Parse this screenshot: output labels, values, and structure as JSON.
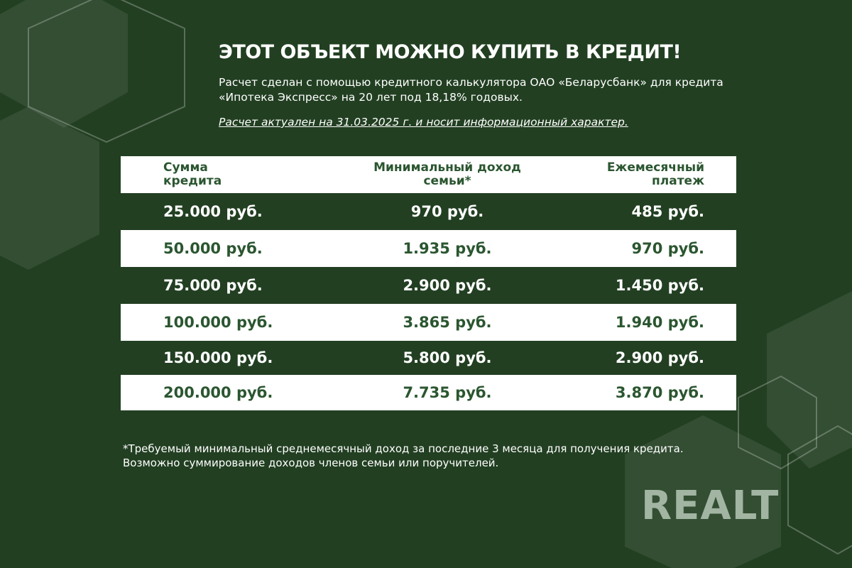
{
  "header": {
    "title": "ЭТОТ ОБЪЕКТ МОЖНО КУПИТЬ В КРЕДИТ!",
    "subtitle": "Расчет сделан с помощью кредитного калькулятора ОАО «Беларусбанк» для кредита «Ипотека Экспресс» на 20 лет под 18,18% годовых.",
    "note": "Расчет актуален на 31.03.2025 г. и носит информационный характер."
  },
  "table": {
    "columns": [
      "Сумма кредита",
      "Минимальный доход семьи*",
      "Ежемесячный платеж"
    ],
    "rows": [
      [
        "25.000 руб.",
        "970 руб.",
        "485 руб."
      ],
      [
        "50.000 руб.",
        "1.935 руб.",
        "970 руб."
      ],
      [
        "75.000 руб.",
        "2.900 руб.",
        "1.450 руб."
      ],
      [
        "100.000 руб.",
        "3.865 руб.",
        "1.940 руб."
      ],
      [
        "150.000 руб.",
        "5.800 руб.",
        "2.900 руб."
      ],
      [
        "200.000 руб.",
        "7.735 руб.",
        "3.870 руб."
      ]
    ]
  },
  "footnote": "*Требуемый минимальный среднемесячный доход за последние 3 месяца для получения кредита. Возможно суммирование доходов членов семьи или поручителей.",
  "logo": "REALT",
  "colors": {
    "background": "#223f22",
    "accent_text": "#2b5630",
    "row_light": "#ffffff"
  }
}
